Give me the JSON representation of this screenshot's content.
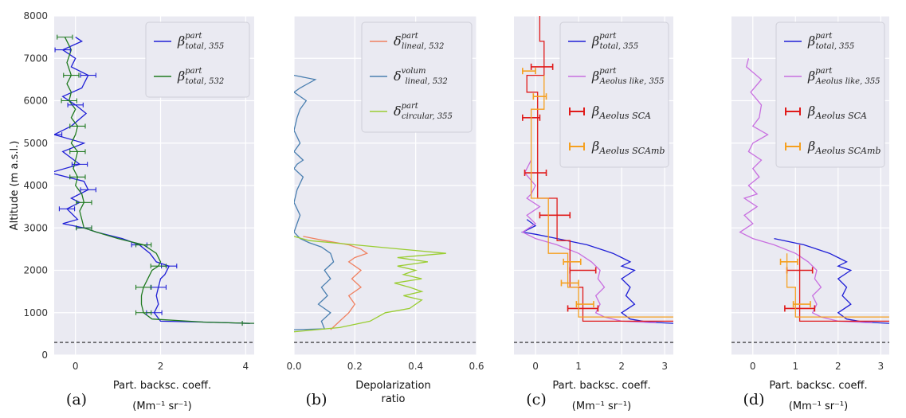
{
  "chart_data": [
    {
      "panel_label": "(a)",
      "type": "line",
      "xlabel": "Part. backsc. coeff.",
      "xunit": "(Mm⁻¹ sr⁻¹)",
      "ylabel": "Altitude (m a.s.l.)",
      "xlim": [
        -0.5,
        4.2
      ],
      "ylim": [
        0,
        8000
      ],
      "xticks": [
        0,
        2,
        4
      ],
      "yticks": [
        0,
        1000,
        2000,
        3000,
        4000,
        5000,
        6000,
        7000,
        8000
      ],
      "grid": true,
      "legend_position": "top-right",
      "reference_line_altitude": 300,
      "series": [
        {
          "legend": {
            "sym": "β",
            "sup": "part",
            "sub": "total, 355"
          },
          "color": "#1f1fd6",
          "x": [
            4.1,
            3.0,
            2.0,
            1.85,
            1.95,
            1.9,
            1.95,
            2.0,
            2.1,
            2.2,
            1.9,
            1.75,
            1.5,
            1.1,
            0.5,
            0.2,
            -0.3,
            0.05,
            -0.2,
            0.1,
            -0.1,
            0.3,
            0.2,
            -0.6,
            0.1,
            -0.3,
            0.2,
            -0.5,
            -0.1,
            0.25,
            0.0,
            -0.3,
            0.15,
            0.3,
            -0.1,
            0.0,
            -0.3,
            0.15,
            0.0
          ],
          "y": [
            750,
            780,
            800,
            1000,
            1200,
            1400,
            1600,
            1800,
            1900,
            2100,
            2200,
            2400,
            2600,
            2750,
            2900,
            3000,
            3100,
            3200,
            3450,
            3600,
            3700,
            3900,
            4100,
            4300,
            4500,
            4800,
            5000,
            5200,
            5400,
            5700,
            5900,
            6100,
            6300,
            6600,
            6800,
            7000,
            7200,
            7400,
            7500
          ]
        },
        {
          "legend": {
            "sym": "β",
            "sup": "part",
            "sub": "total, 532"
          },
          "color": "#1f7a1f",
          "x": [
            4.1,
            3.0,
            1.8,
            1.6,
            1.55,
            1.55,
            1.6,
            1.7,
            1.8,
            1.95,
            2.0,
            1.9,
            1.6,
            1.0,
            0.5,
            0.2,
            0.15,
            0.1,
            0.2,
            0.15,
            0.0,
            0.05,
            -0.05,
            0.0,
            0.05,
            -0.1,
            0.0,
            0.05,
            -0.1,
            0.0,
            -0.15,
            -0.1,
            -0.2,
            -0.1,
            -0.2,
            -0.1,
            -0.25
          ],
          "y": [
            750,
            780,
            850,
            1000,
            1200,
            1400,
            1600,
            1800,
            2000,
            2100,
            2200,
            2400,
            2600,
            2750,
            2900,
            3000,
            3200,
            3400,
            3600,
            3800,
            4000,
            4200,
            4400,
            4600,
            4800,
            5000,
            5200,
            5400,
            5600,
            5800,
            6000,
            6200,
            6400,
            6600,
            6900,
            7200,
            7500
          ]
        }
      ]
    },
    {
      "panel_label": "(b)",
      "type": "line",
      "xlabel": "Depolarization",
      "xlabel2": "ratio",
      "xlim": [
        0,
        0.6
      ],
      "ylim": [
        0,
        8000
      ],
      "xticks": [
        0.0,
        0.2,
        0.4,
        0.6
      ],
      "xtick_labels": [
        "0.0",
        "0.2",
        "0.4",
        "0.6"
      ],
      "grid": true,
      "legend_position": "top-right",
      "reference_line_altitude": 300,
      "series": [
        {
          "legend": {
            "sym": "δ",
            "sup": "part",
            "sub": "lineal, 532"
          },
          "color": "#f08060",
          "x": [
            0.12,
            0.15,
            0.18,
            0.2,
            0.18,
            0.22,
            0.19,
            0.22,
            0.18,
            0.2,
            0.24,
            0.22,
            0.18,
            0.1,
            0.03
          ],
          "y": [
            600,
            800,
            1000,
            1200,
            1400,
            1600,
            1800,
            2000,
            2200,
            2300,
            2400,
            2500,
            2600,
            2700,
            2800
          ]
        },
        {
          "legend": {
            "sym": "δ",
            "sup": "volum",
            "sub": "lineal, 532"
          },
          "color": "#4a7fb0",
          "x": [
            0.0,
            0.1,
            0.09,
            0.12,
            0.08,
            0.11,
            0.09,
            0.12,
            0.1,
            0.13,
            0.12,
            0.09,
            0.05,
            0.02,
            0.0,
            0.01,
            0.02,
            0.0,
            0.01,
            0.03,
            0.0,
            0.01,
            0.03,
            0.0,
            0.02,
            0.0,
            0.01,
            0.02,
            0.04,
            0.0,
            0.02,
            0.07,
            0.0
          ],
          "y": [
            600,
            620,
            800,
            1000,
            1200,
            1400,
            1600,
            1800,
            2000,
            2200,
            2400,
            2550,
            2650,
            2750,
            2900,
            3100,
            3300,
            3600,
            3900,
            4200,
            4400,
            4500,
            4600,
            4800,
            5000,
            5300,
            5600,
            5800,
            6000,
            6200,
            6300,
            6500,
            6600
          ]
        },
        {
          "legend": {
            "sym": "δ",
            "sup": "part",
            "sub": "circular, 355"
          },
          "color": "#9acd32",
          "x": [
            0.0,
            0.15,
            0.25,
            0.3,
            0.38,
            0.42,
            0.36,
            0.42,
            0.38,
            0.33,
            0.42,
            0.36,
            0.4,
            0.34,
            0.44,
            0.34,
            0.5,
            0.35,
            0.2,
            0.05,
            0.0
          ],
          "y": [
            550,
            650,
            800,
            1000,
            1100,
            1300,
            1400,
            1500,
            1600,
            1700,
            1800,
            1900,
            2000,
            2100,
            2200,
            2300,
            2400,
            2500,
            2600,
            2700,
            2800
          ]
        }
      ]
    },
    {
      "panel_label": "(c)",
      "type": "line",
      "xlabel": "Part. backsc. coeff.",
      "xunit": "(Mm⁻¹ sr⁻¹)",
      "xlim": [
        -0.5,
        3.2
      ],
      "ylim": [
        0,
        8000
      ],
      "xticks": [
        0,
        1,
        2,
        3
      ],
      "grid": true,
      "legend_position": "top-right",
      "reference_line_altitude": 300,
      "series": [
        {
          "legend": {
            "sym": "β",
            "sup": "part",
            "sub": "total, 355"
          },
          "color": "#1f1fd6",
          "x": [
            3.2,
            2.6,
            2.2,
            2.0,
            2.3,
            2.1,
            2.2,
            2.0,
            2.3,
            2.0,
            2.2,
            2.0,
            1.8,
            1.2,
            0.5,
            0.0,
            -0.3,
            0.0,
            -0.2
          ],
          "y": [
            750,
            780,
            850,
            1000,
            1200,
            1400,
            1600,
            1800,
            2000,
            2100,
            2200,
            2300,
            2400,
            2600,
            2750,
            2850,
            2900,
            3050,
            3200
          ]
        },
        {
          "legend": {
            "sym": "β",
            "sup": "part",
            "sub": "Aeolus like, 355"
          },
          "color": "#c86fe0",
          "x": [
            2.8,
            2.0,
            1.6,
            1.4,
            1.5,
            1.4,
            1.6,
            1.45,
            1.5,
            1.3,
            1.0,
            0.5,
            0.0,
            -0.3,
            0.0,
            -0.2,
            0.1,
            -0.2,
            -0.1,
            0.0,
            -0.25,
            -0.1
          ],
          "y": [
            760,
            800,
            900,
            1000,
            1200,
            1400,
            1600,
            1800,
            2000,
            2200,
            2400,
            2600,
            2750,
            2900,
            3100,
            3300,
            3500,
            3700,
            3800,
            4000,
            4300,
            4600
          ]
        },
        {
          "legend": {
            "sym": "β",
            "sup": "",
            "sub": "Aeolus SCA"
          },
          "color": "#e01a1a",
          "x": [
            3.2,
            1.1,
            1.1,
            0.8,
            0.8,
            0.5,
            0.5,
            0.05,
            0.05,
            -0.2,
            -0.2,
            0.2,
            0.2,
            0.1,
            0.1
          ],
          "y": [
            800,
            800,
            1600,
            1600,
            2700,
            2700,
            3700,
            3700,
            6200,
            6200,
            6600,
            6600,
            7400,
            7400,
            8000
          ],
          "points": [
            {
              "x": 1.1,
              "y": 1100,
              "err": 0.35
            },
            {
              "x": 1.1,
              "y": 2000,
              "err": 0.3
            },
            {
              "x": 0.45,
              "y": 3300,
              "err": 0.35
            },
            {
              "x": 0.0,
              "y": 4300,
              "err": 0.25
            },
            {
              "x": -0.1,
              "y": 5600,
              "err": 0.2
            },
            {
              "x": 0.15,
              "y": 6800,
              "err": 0.25
            }
          ]
        },
        {
          "legend": {
            "sym": "β",
            "sup": "",
            "sub": "Aeolus SCAmb"
          },
          "color": "#f5a020",
          "x": [
            3.2,
            1.0,
            1.0,
            0.75,
            0.75,
            0.3,
            0.3,
            -0.1,
            -0.1,
            0.2,
            0.2
          ],
          "y": [
            900,
            900,
            1600,
            1600,
            2400,
            2400,
            3700,
            3700,
            5800,
            5800,
            6600
          ],
          "points": [
            {
              "x": 1.15,
              "y": 1200,
              "err": 0.2
            },
            {
              "x": 0.8,
              "y": 1700,
              "err": 0.2
            },
            {
              "x": 0.85,
              "y": 2200,
              "err": 0.2
            },
            {
              "x": 0.1,
              "y": 6100,
              "err": 0.15
            },
            {
              "x": -0.15,
              "y": 6700,
              "err": 0.15
            }
          ]
        }
      ]
    },
    {
      "panel_label": "(d)",
      "type": "line",
      "xlabel": "Part. backsc. coeff.",
      "xunit": "(Mm⁻¹ sr⁻¹)",
      "xlim": [
        -0.5,
        3.2
      ],
      "ylim": [
        0,
        8000
      ],
      "xticks": [
        0,
        1,
        2,
        3
      ],
      "grid": true,
      "legend_position": "top-right",
      "reference_line_altitude": 300,
      "series": [
        {
          "legend": {
            "sym": "β",
            "sup": "part",
            "sub": "total, 355"
          },
          "color": "#1f1fd6",
          "x": [
            3.2,
            2.6,
            2.2,
            2.0,
            2.3,
            2.1,
            2.2,
            2.0,
            2.3,
            2.0,
            2.2,
            2.0,
            1.8,
            1.2,
            0.5
          ],
          "y": [
            750,
            780,
            850,
            1000,
            1200,
            1400,
            1600,
            1800,
            2000,
            2100,
            2200,
            2300,
            2400,
            2600,
            2750
          ]
        },
        {
          "legend": {
            "sym": "β",
            "sup": "part",
            "sub": "Aeolus like, 355"
          },
          "color": "#c86fe0",
          "x": [
            2.8,
            2.0,
            1.6,
            1.4,
            1.5,
            1.4,
            1.6,
            1.45,
            1.5,
            1.3,
            1.0,
            0.5,
            0.0,
            -0.3,
            0.0,
            -0.2,
            0.1,
            -0.2,
            0.1,
            -0.1,
            0.15,
            0.0,
            0.2,
            -0.1,
            0.0,
            0.35,
            0.0,
            0.15,
            0.2,
            -0.05,
            0.2,
            -0.15,
            -0.1
          ],
          "y": [
            760,
            800,
            900,
            1000,
            1200,
            1400,
            1600,
            1800,
            2000,
            2200,
            2400,
            2600,
            2750,
            2900,
            3100,
            3300,
            3500,
            3700,
            3800,
            4000,
            4200,
            4400,
            4600,
            4800,
            5000,
            5200,
            5400,
            5600,
            5900,
            6200,
            6500,
            6800,
            7000
          ]
        },
        {
          "legend": {
            "sym": "β",
            "sup": "",
            "sub": "Aeolus SCA"
          },
          "color": "#e01a1a",
          "x": [
            3.2,
            1.1,
            1.1
          ],
          "y": [
            800,
            800,
            2600
          ],
          "points": [
            {
              "x": 1.1,
              "y": 1100,
              "err": 0.35
            },
            {
              "x": 1.1,
              "y": 2000,
              "err": 0.3
            }
          ]
        },
        {
          "legend": {
            "sym": "β",
            "sup": "",
            "sub": "Aeolus SCAmb"
          },
          "color": "#f5a020",
          "x": [
            3.2,
            1.0,
            1.0,
            0.8,
            0.8
          ],
          "y": [
            900,
            900,
            1600,
            1600,
            2400
          ],
          "points": [
            {
              "x": 1.15,
              "y": 1200,
              "err": 0.2
            },
            {
              "x": 0.85,
              "y": 2200,
              "err": 0.2
            }
          ]
        }
      ]
    }
  ]
}
